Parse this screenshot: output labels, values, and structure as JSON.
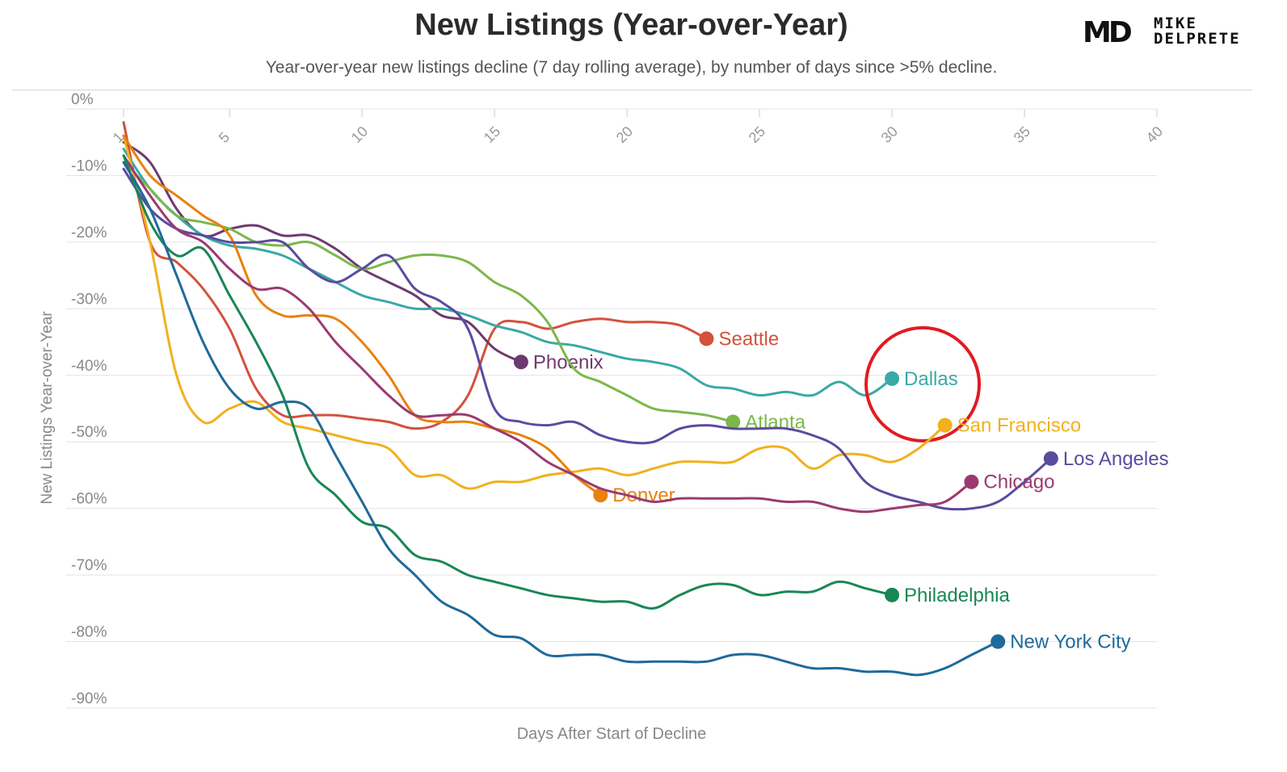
{
  "header": {
    "title": "New Listings (Year-over-Year)",
    "subtitle": "Year-over-year new listings decline (7 day rolling average), by number of days since >5% decline."
  },
  "logo": {
    "mark": "MD",
    "line1": "MIKE",
    "line2": "DELPRETE"
  },
  "chart_data": {
    "type": "line",
    "title": "New Listings (Year-over-Year)",
    "xlabel": "Days After Start of Decline",
    "ylabel": "New Listings Year-over-Year",
    "xlim": [
      1,
      40
    ],
    "ylim": [
      -90,
      0
    ],
    "x_ticks": [
      1,
      5,
      10,
      15,
      20,
      25,
      30,
      35,
      40
    ],
    "y_ticks": [
      0,
      -10,
      -20,
      -30,
      -40,
      -50,
      -60,
      -70,
      -80,
      -90
    ],
    "y_tick_labels": [
      "0%",
      "-10%",
      "-20%",
      "-30%",
      "-40%",
      "-50%",
      "-60%",
      "-70%",
      "-80%",
      "-90%"
    ],
    "grid": true,
    "annotation": {
      "type": "circle",
      "target": "Dallas"
    },
    "series": [
      {
        "name": "Seattle",
        "color": "#d4513b",
        "points": [
          [
            1,
            -2
          ],
          [
            2,
            -20
          ],
          [
            3,
            -23
          ],
          [
            4,
            -27
          ],
          [
            5,
            -33
          ],
          [
            6,
            -42
          ],
          [
            7,
            -46
          ],
          [
            8,
            -46
          ],
          [
            9,
            -46
          ],
          [
            10,
            -46.5
          ],
          [
            11,
            -47
          ],
          [
            12,
            -48
          ],
          [
            13,
            -47
          ],
          [
            14,
            -43
          ],
          [
            15,
            -33
          ],
          [
            16,
            -32
          ],
          [
            17,
            -33
          ],
          [
            18,
            -32
          ],
          [
            19,
            -31.5
          ],
          [
            20,
            -32
          ],
          [
            21,
            -32
          ],
          [
            22,
            -32.5
          ],
          [
            23,
            -34.5
          ]
        ]
      },
      {
        "name": "Phoenix",
        "color": "#6e3a6e",
        "points": [
          [
            1,
            -5
          ],
          [
            2,
            -8
          ],
          [
            3,
            -15
          ],
          [
            4,
            -19
          ],
          [
            5,
            -18
          ],
          [
            6,
            -17.5
          ],
          [
            7,
            -19
          ],
          [
            8,
            -19
          ],
          [
            9,
            -21
          ],
          [
            10,
            -24
          ],
          [
            11,
            -26
          ],
          [
            12,
            -28
          ],
          [
            13,
            -31
          ],
          [
            14,
            -32
          ],
          [
            15,
            -36
          ],
          [
            16,
            -38
          ]
        ]
      },
      {
        "name": "Dallas",
        "color": "#3aa9a5",
        "points": [
          [
            1,
            -6
          ],
          [
            2,
            -12
          ],
          [
            3,
            -16
          ],
          [
            4,
            -19
          ],
          [
            5,
            -20.5
          ],
          [
            6,
            -21
          ],
          [
            7,
            -22
          ],
          [
            8,
            -24
          ],
          [
            9,
            -26
          ],
          [
            10,
            -28
          ],
          [
            11,
            -29
          ],
          [
            12,
            -30
          ],
          [
            13,
            -30
          ],
          [
            14,
            -31
          ],
          [
            15,
            -32.5
          ],
          [
            16,
            -33.5
          ],
          [
            17,
            -35
          ],
          [
            18,
            -35.5
          ],
          [
            19,
            -36.5
          ],
          [
            20,
            -37.5
          ],
          [
            21,
            -38
          ],
          [
            22,
            -39
          ],
          [
            23,
            -41.5
          ],
          [
            24,
            -42
          ],
          [
            25,
            -43
          ],
          [
            26,
            -42.5
          ],
          [
            27,
            -43
          ],
          [
            28,
            -41
          ],
          [
            29,
            -43
          ],
          [
            30,
            -40.5
          ]
        ]
      },
      {
        "name": "Atlanta",
        "color": "#7bb84b",
        "points": [
          [
            1,
            -8
          ],
          [
            2,
            -12
          ],
          [
            3,
            -16
          ],
          [
            4,
            -17
          ],
          [
            5,
            -18
          ],
          [
            6,
            -20
          ],
          [
            7,
            -20.5
          ],
          [
            8,
            -20
          ],
          [
            9,
            -22
          ],
          [
            10,
            -24
          ],
          [
            11,
            -23
          ],
          [
            12,
            -22
          ],
          [
            13,
            -22
          ],
          [
            14,
            -23
          ],
          [
            15,
            -26
          ],
          [
            16,
            -28
          ],
          [
            17,
            -32
          ],
          [
            18,
            -39
          ],
          [
            19,
            -41
          ],
          [
            20,
            -43
          ],
          [
            21,
            -45
          ],
          [
            22,
            -45.5
          ],
          [
            23,
            -46
          ],
          [
            24,
            -47
          ]
        ]
      },
      {
        "name": "San Francisco",
        "color": "#f1b11c",
        "points": [
          [
            1,
            -4
          ],
          [
            2,
            -20
          ],
          [
            3,
            -40
          ],
          [
            4,
            -47
          ],
          [
            5,
            -45
          ],
          [
            6,
            -44
          ],
          [
            7,
            -47
          ],
          [
            8,
            -48
          ],
          [
            9,
            -49
          ],
          [
            10,
            -50
          ],
          [
            11,
            -51
          ],
          [
            12,
            -55
          ],
          [
            13,
            -55
          ],
          [
            14,
            -57
          ],
          [
            15,
            -56
          ],
          [
            16,
            -56
          ],
          [
            17,
            -55
          ],
          [
            18,
            -54.5
          ],
          [
            19,
            -54
          ],
          [
            20,
            -55
          ],
          [
            21,
            -54
          ],
          [
            22,
            -53
          ],
          [
            23,
            -53
          ],
          [
            24,
            -53
          ],
          [
            25,
            -51
          ],
          [
            26,
            -51
          ],
          [
            27,
            -54
          ],
          [
            28,
            -52
          ],
          [
            29,
            -52
          ],
          [
            30,
            -53
          ],
          [
            31,
            -51
          ],
          [
            32,
            -47.5
          ]
        ]
      },
      {
        "name": "Denver",
        "color": "#e8810e",
        "points": [
          [
            1,
            -4
          ],
          [
            2,
            -10
          ],
          [
            3,
            -13
          ],
          [
            4,
            -16
          ],
          [
            5,
            -19
          ],
          [
            6,
            -28
          ],
          [
            7,
            -31
          ],
          [
            8,
            -31
          ],
          [
            9,
            -31.5
          ],
          [
            10,
            -35
          ],
          [
            11,
            -40
          ],
          [
            12,
            -46
          ],
          [
            13,
            -47
          ],
          [
            14,
            -47
          ],
          [
            15,
            -48
          ],
          [
            16,
            -49
          ],
          [
            17,
            -51
          ],
          [
            18,
            -55
          ],
          [
            19,
            -58
          ]
        ]
      },
      {
        "name": "Los Angeles",
        "color": "#5b4b9e",
        "points": [
          [
            1,
            -9
          ],
          [
            2,
            -15
          ],
          [
            3,
            -18
          ],
          [
            4,
            -19
          ],
          [
            5,
            -20
          ],
          [
            6,
            -20
          ],
          [
            7,
            -20
          ],
          [
            8,
            -24
          ],
          [
            9,
            -26
          ],
          [
            10,
            -24
          ],
          [
            11,
            -22
          ],
          [
            12,
            -27
          ],
          [
            13,
            -29
          ],
          [
            14,
            -33
          ],
          [
            15,
            -45
          ],
          [
            16,
            -47
          ],
          [
            17,
            -47.5
          ],
          [
            18,
            -47
          ],
          [
            19,
            -49
          ],
          [
            20,
            -50
          ],
          [
            21,
            -50
          ],
          [
            22,
            -48
          ],
          [
            23,
            -47.5
          ],
          [
            24,
            -48
          ],
          [
            25,
            -48
          ],
          [
            26,
            -48
          ],
          [
            27,
            -49
          ],
          [
            28,
            -51
          ],
          [
            29,
            -56
          ],
          [
            30,
            -58
          ],
          [
            31,
            -59
          ],
          [
            32,
            -60
          ],
          [
            33,
            -60
          ],
          [
            34,
            -59
          ],
          [
            35,
            -56
          ],
          [
            36,
            -52.5
          ]
        ]
      },
      {
        "name": "Chicago",
        "color": "#9b3a70",
        "points": [
          [
            1,
            -7
          ],
          [
            2,
            -13
          ],
          [
            3,
            -18
          ],
          [
            4,
            -20
          ],
          [
            5,
            -24
          ],
          [
            6,
            -27
          ],
          [
            7,
            -27
          ],
          [
            8,
            -30
          ],
          [
            9,
            -35
          ],
          [
            10,
            -39
          ],
          [
            11,
            -43
          ],
          [
            12,
            -46
          ],
          [
            13,
            -46
          ],
          [
            14,
            -46
          ],
          [
            15,
            -48
          ],
          [
            16,
            -50
          ],
          [
            17,
            -53
          ],
          [
            18,
            -55
          ],
          [
            19,
            -57
          ],
          [
            20,
            -58
          ],
          [
            21,
            -59
          ],
          [
            22,
            -58.5
          ],
          [
            23,
            -58.5
          ],
          [
            24,
            -58.5
          ],
          [
            25,
            -58.5
          ],
          [
            26,
            -59
          ],
          [
            27,
            -59
          ],
          [
            28,
            -60
          ],
          [
            29,
            -60.5
          ],
          [
            30,
            -60
          ],
          [
            31,
            -59.5
          ],
          [
            32,
            -59
          ],
          [
            33,
            -56
          ]
        ]
      },
      {
        "name": "Philadelphia",
        "color": "#1a8656",
        "points": [
          [
            1,
            -7
          ],
          [
            2,
            -17
          ],
          [
            3,
            -22
          ],
          [
            4,
            -21
          ],
          [
            5,
            -28
          ],
          [
            6,
            -35
          ],
          [
            7,
            -43
          ],
          [
            8,
            -54
          ],
          [
            9,
            -58
          ],
          [
            10,
            -62
          ],
          [
            11,
            -63
          ],
          [
            12,
            -67
          ],
          [
            13,
            -68
          ],
          [
            14,
            -70
          ],
          [
            15,
            -71
          ],
          [
            16,
            -72
          ],
          [
            17,
            -73
          ],
          [
            18,
            -73.5
          ],
          [
            19,
            -74
          ],
          [
            20,
            -74
          ],
          [
            21,
            -75
          ],
          [
            22,
            -73
          ],
          [
            23,
            -71.5
          ],
          [
            24,
            -71.5
          ],
          [
            25,
            -73
          ],
          [
            26,
            -72.5
          ],
          [
            27,
            -72.5
          ],
          [
            28,
            -71
          ],
          [
            29,
            -72
          ],
          [
            30,
            -73
          ]
        ]
      },
      {
        "name": "New York City",
        "color": "#1f6a9b",
        "points": [
          [
            1,
            -8
          ],
          [
            2,
            -15
          ],
          [
            3,
            -25
          ],
          [
            4,
            -35
          ],
          [
            5,
            -42
          ],
          [
            6,
            -45
          ],
          [
            7,
            -44
          ],
          [
            8,
            -45
          ],
          [
            9,
            -52
          ],
          [
            10,
            -59
          ],
          [
            11,
            -66
          ],
          [
            12,
            -70
          ],
          [
            13,
            -74
          ],
          [
            14,
            -76
          ],
          [
            15,
            -79
          ],
          [
            16,
            -79.5
          ],
          [
            17,
            -82
          ],
          [
            18,
            -82
          ],
          [
            19,
            -82
          ],
          [
            20,
            -83
          ],
          [
            21,
            -83
          ],
          [
            22,
            -83
          ],
          [
            23,
            -83
          ],
          [
            24,
            -82
          ],
          [
            25,
            -82
          ],
          [
            26,
            -83
          ],
          [
            27,
            -84
          ],
          [
            28,
            -84
          ],
          [
            29,
            -84.5
          ],
          [
            30,
            -84.5
          ],
          [
            31,
            -85
          ],
          [
            32,
            -84
          ],
          [
            33,
            -82
          ],
          [
            34,
            -80
          ]
        ]
      }
    ]
  }
}
